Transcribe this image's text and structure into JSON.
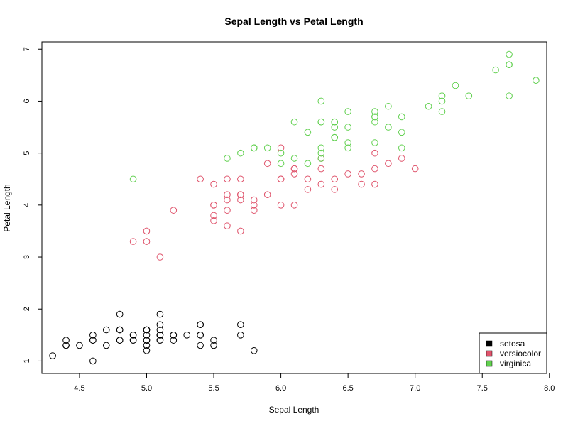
{
  "chart_data": {
    "type": "scatter",
    "title": "Sepal Length vs Petal Length",
    "xlabel": "Sepal Length",
    "ylabel": "Petal Length",
    "xlim": [
      4.22,
      7.98
    ],
    "ylim": [
      0.76,
      7.14
    ],
    "xticks": [
      "4.5",
      "5.0",
      "5.5",
      "6.0",
      "6.5",
      "7.0",
      "7.5",
      "8.0"
    ],
    "yticks": [
      "1",
      "2",
      "3",
      "4",
      "5",
      "6",
      "7"
    ],
    "legend_position": "bottom-right",
    "series": [
      {
        "name": "setosa",
        "color": "#000000",
        "points": [
          [
            5.1,
            1.4
          ],
          [
            4.9,
            1.4
          ],
          [
            4.7,
            1.3
          ],
          [
            4.6,
            1.5
          ],
          [
            5.0,
            1.4
          ],
          [
            5.4,
            1.7
          ],
          [
            4.6,
            1.4
          ],
          [
            5.0,
            1.5
          ],
          [
            4.4,
            1.4
          ],
          [
            4.9,
            1.5
          ],
          [
            5.4,
            1.5
          ],
          [
            4.8,
            1.6
          ],
          [
            4.8,
            1.4
          ],
          [
            4.3,
            1.1
          ],
          [
            5.8,
            1.2
          ],
          [
            5.7,
            1.5
          ],
          [
            5.4,
            1.3
          ],
          [
            5.1,
            1.4
          ],
          [
            5.7,
            1.7
          ],
          [
            5.1,
            1.5
          ],
          [
            5.4,
            1.7
          ],
          [
            5.1,
            1.5
          ],
          [
            4.6,
            1.0
          ],
          [
            5.1,
            1.7
          ],
          [
            4.8,
            1.9
          ],
          [
            5.0,
            1.6
          ],
          [
            5.0,
            1.6
          ],
          [
            5.2,
            1.5
          ],
          [
            5.2,
            1.4
          ],
          [
            4.7,
            1.6
          ],
          [
            4.8,
            1.6
          ],
          [
            5.4,
            1.5
          ],
          [
            5.2,
            1.5
          ],
          [
            5.5,
            1.4
          ],
          [
            4.9,
            1.5
          ],
          [
            5.0,
            1.2
          ],
          [
            5.5,
            1.3
          ],
          [
            4.9,
            1.4
          ],
          [
            4.4,
            1.3
          ],
          [
            5.1,
            1.5
          ],
          [
            5.0,
            1.3
          ],
          [
            4.5,
            1.3
          ],
          [
            4.4,
            1.3
          ],
          [
            5.0,
            1.6
          ],
          [
            5.1,
            1.9
          ],
          [
            4.8,
            1.4
          ],
          [
            5.1,
            1.6
          ],
          [
            4.6,
            1.4
          ],
          [
            5.3,
            1.5
          ],
          [
            5.0,
            1.4
          ]
        ]
      },
      {
        "name": "versiocolor",
        "color": "#DF536B",
        "points": [
          [
            7.0,
            4.7
          ],
          [
            6.4,
            4.5
          ],
          [
            6.9,
            4.9
          ],
          [
            5.5,
            4.0
          ],
          [
            6.5,
            4.6
          ],
          [
            5.7,
            4.5
          ],
          [
            6.3,
            4.7
          ],
          [
            4.9,
            3.3
          ],
          [
            6.6,
            4.6
          ],
          [
            5.2,
            3.9
          ],
          [
            5.0,
            3.5
          ],
          [
            5.9,
            4.2
          ],
          [
            6.0,
            4.0
          ],
          [
            6.1,
            4.7
          ],
          [
            5.6,
            3.6
          ],
          [
            6.7,
            4.4
          ],
          [
            5.6,
            4.5
          ],
          [
            5.8,
            4.1
          ],
          [
            6.2,
            4.5
          ],
          [
            5.6,
            3.9
          ],
          [
            5.9,
            4.8
          ],
          [
            6.1,
            4.0
          ],
          [
            6.3,
            4.9
          ],
          [
            6.1,
            4.7
          ],
          [
            6.4,
            4.3
          ],
          [
            6.6,
            4.4
          ],
          [
            6.8,
            4.8
          ],
          [
            6.7,
            5.0
          ],
          [
            6.0,
            4.5
          ],
          [
            5.7,
            3.5
          ],
          [
            5.5,
            3.8
          ],
          [
            5.5,
            3.7
          ],
          [
            5.8,
            3.9
          ],
          [
            6.0,
            5.1
          ],
          [
            5.4,
            4.5
          ],
          [
            6.0,
            4.5
          ],
          [
            6.7,
            4.7
          ],
          [
            6.3,
            4.4
          ],
          [
            5.6,
            4.1
          ],
          [
            5.5,
            4.0
          ],
          [
            5.5,
            4.4
          ],
          [
            6.1,
            4.6
          ],
          [
            5.8,
            4.0
          ],
          [
            5.0,
            3.3
          ],
          [
            5.6,
            4.2
          ],
          [
            5.7,
            4.2
          ],
          [
            5.7,
            4.2
          ],
          [
            6.2,
            4.3
          ],
          [
            5.1,
            3.0
          ],
          [
            5.7,
            4.1
          ]
        ]
      },
      {
        "name": "virginica",
        "color": "#61D04F",
        "points": [
          [
            6.3,
            6.0
          ],
          [
            5.8,
            5.1
          ],
          [
            7.1,
            5.9
          ],
          [
            6.3,
            5.6
          ],
          [
            6.5,
            5.8
          ],
          [
            7.6,
            6.6
          ],
          [
            4.9,
            4.5
          ],
          [
            7.3,
            6.3
          ],
          [
            6.7,
            5.8
          ],
          [
            7.2,
            6.1
          ],
          [
            6.5,
            5.1
          ],
          [
            6.4,
            5.3
          ],
          [
            6.8,
            5.5
          ],
          [
            5.7,
            5.0
          ],
          [
            5.8,
            5.1
          ],
          [
            6.4,
            5.3
          ],
          [
            6.5,
            5.5
          ],
          [
            7.7,
            6.7
          ],
          [
            7.7,
            6.9
          ],
          [
            6.0,
            5.0
          ],
          [
            6.9,
            5.7
          ],
          [
            5.6,
            4.9
          ],
          [
            7.7,
            6.7
          ],
          [
            6.3,
            4.9
          ],
          [
            6.7,
            5.7
          ],
          [
            7.2,
            6.0
          ],
          [
            6.2,
            4.8
          ],
          [
            6.1,
            4.9
          ],
          [
            6.4,
            5.6
          ],
          [
            7.2,
            5.8
          ],
          [
            7.4,
            6.1
          ],
          [
            7.9,
            6.4
          ],
          [
            6.4,
            5.6
          ],
          [
            6.3,
            5.1
          ],
          [
            6.1,
            5.6
          ],
          [
            7.7,
            6.1
          ],
          [
            6.3,
            5.6
          ],
          [
            6.4,
            5.5
          ],
          [
            6.0,
            4.8
          ],
          [
            6.9,
            5.4
          ],
          [
            6.7,
            5.6
          ],
          [
            6.9,
            5.1
          ],
          [
            5.8,
            5.1
          ],
          [
            6.8,
            5.9
          ],
          [
            6.7,
            5.7
          ],
          [
            6.7,
            5.2
          ],
          [
            6.3,
            5.0
          ],
          [
            6.5,
            5.2
          ],
          [
            6.2,
            5.4
          ],
          [
            5.9,
            5.1
          ]
        ]
      }
    ]
  }
}
